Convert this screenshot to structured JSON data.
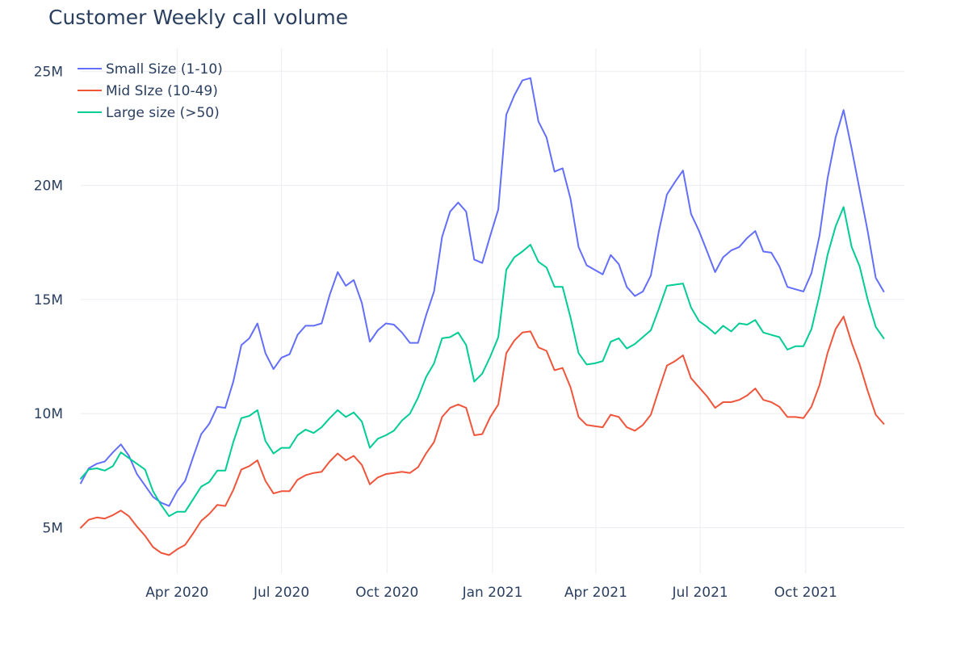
{
  "chart_data": {
    "type": "line",
    "title": "Customer Weekly call volume",
    "xlabel": "",
    "ylabel": "",
    "x_range": [
      "2020-01-08",
      "2021-12-26"
    ],
    "y_range": [
      3000000,
      26000000
    ],
    "grid": true,
    "legend_position": "top-left",
    "y_ticks": [
      {
        "value": 5000000,
        "label": "5M"
      },
      {
        "value": 10000000,
        "label": "10M"
      },
      {
        "value": 15000000,
        "label": "15M"
      },
      {
        "value": 20000000,
        "label": "20M"
      },
      {
        "value": 25000000,
        "label": "25M"
      }
    ],
    "x_ticks": [
      {
        "value": "2020-04-01",
        "label": "Apr 2020"
      },
      {
        "value": "2020-07-01",
        "label": "Jul 2020"
      },
      {
        "value": "2020-10-01",
        "label": "Oct 2020"
      },
      {
        "value": "2021-01-01",
        "label": "Jan 2021"
      },
      {
        "value": "2021-04-01",
        "label": "Apr 2021"
      },
      {
        "value": "2021-07-01",
        "label": "Jul 2021"
      },
      {
        "value": "2021-10-01",
        "label": "Oct 2021"
      }
    ],
    "start_date": "2020-01-08",
    "interval_days": 7,
    "series": [
      {
        "name": "Small Size (1-10)",
        "color": "#636efa",
        "values": [
          6.95,
          7.6,
          7.8,
          7.9,
          8.3,
          8.65,
          8.15,
          7.35,
          6.85,
          6.35,
          6.1,
          5.95,
          6.6,
          7.05,
          8.1,
          9.1,
          9.55,
          10.3,
          10.25,
          11.4,
          13.0,
          13.3,
          13.95,
          12.65,
          11.95,
          12.45,
          12.6,
          13.45,
          13.85,
          13.85,
          13.95,
          15.2,
          16.2,
          15.6,
          15.85,
          14.85,
          13.15,
          13.65,
          13.95,
          13.9,
          13.55,
          13.1,
          13.1,
          14.3,
          15.35,
          17.75,
          18.85,
          19.25,
          18.85,
          16.75,
          16.6,
          17.8,
          18.95,
          23.1,
          23.95,
          24.6,
          24.7,
          22.8,
          22.1,
          20.6,
          20.75,
          19.4,
          17.3,
          16.5,
          16.3,
          16.1,
          16.95,
          16.55,
          15.55,
          15.15,
          15.35,
          16.05,
          18.0,
          19.6,
          20.15,
          20.65,
          18.75,
          18.0,
          17.1,
          16.2,
          16.85,
          17.15,
          17.3,
          17.7,
          18.0,
          17.1,
          17.05,
          16.45,
          15.55,
          15.45,
          15.35,
          16.15,
          17.8,
          20.3,
          22.1,
          23.3,
          21.6,
          19.8,
          18.0,
          15.95,
          15.35
        ]
      },
      {
        "name": "Mid SIze (10-49)",
        "color": "#ef553b",
        "values": [
          5.0,
          5.35,
          5.45,
          5.4,
          5.55,
          5.75,
          5.5,
          5.05,
          4.65,
          4.15,
          3.9,
          3.8,
          4.05,
          4.25,
          4.75,
          5.3,
          5.6,
          6.0,
          5.95,
          6.65,
          7.55,
          7.7,
          7.95,
          7.05,
          6.5,
          6.6,
          6.6,
          7.1,
          7.3,
          7.4,
          7.45,
          7.9,
          8.25,
          7.95,
          8.15,
          7.75,
          6.9,
          7.2,
          7.35,
          7.4,
          7.45,
          7.4,
          7.65,
          8.25,
          8.75,
          9.85,
          10.25,
          10.4,
          10.25,
          9.05,
          9.1,
          9.85,
          10.4,
          12.65,
          13.2,
          13.55,
          13.6,
          12.9,
          12.75,
          11.9,
          12.0,
          11.15,
          9.85,
          9.5,
          9.45,
          9.4,
          9.95,
          9.85,
          9.4,
          9.25,
          9.5,
          9.95,
          11.05,
          12.1,
          12.3,
          12.55,
          11.55,
          11.15,
          10.75,
          10.25,
          10.5,
          10.5,
          10.6,
          10.8,
          11.1,
          10.6,
          10.5,
          10.3,
          9.85,
          9.85,
          9.8,
          10.3,
          11.25,
          12.65,
          13.7,
          14.25,
          13.1,
          12.15,
          11.0,
          9.95,
          9.55
        ]
      },
      {
        "name": "Large size (>50)",
        "color": "#00cc96",
        "values": [
          7.15,
          7.55,
          7.6,
          7.5,
          7.7,
          8.3,
          8.05,
          7.8,
          7.55,
          6.6,
          6.0,
          5.5,
          5.7,
          5.7,
          6.25,
          6.8,
          7.0,
          7.5,
          7.5,
          8.75,
          9.8,
          9.9,
          10.15,
          8.8,
          8.25,
          8.5,
          8.5,
          9.05,
          9.3,
          9.15,
          9.4,
          9.8,
          10.15,
          9.85,
          10.05,
          9.65,
          8.5,
          8.9,
          9.05,
          9.25,
          9.7,
          10.0,
          10.7,
          11.6,
          12.2,
          13.3,
          13.35,
          13.55,
          13.0,
          11.4,
          11.75,
          12.5,
          13.35,
          16.3,
          16.85,
          17.1,
          17.4,
          16.65,
          16.4,
          15.55,
          15.55,
          14.2,
          12.65,
          12.15,
          12.2,
          12.3,
          13.15,
          13.3,
          12.85,
          13.05,
          13.35,
          13.65,
          14.6,
          15.6,
          15.65,
          15.7,
          14.65,
          14.05,
          13.8,
          13.5,
          13.85,
          13.6,
          13.95,
          13.9,
          14.1,
          13.55,
          13.45,
          13.35,
          12.8,
          12.95,
          12.95,
          13.7,
          15.2,
          16.95,
          18.2,
          19.05,
          17.3,
          16.45,
          15.0,
          13.8,
          13.3
        ]
      }
    ]
  }
}
